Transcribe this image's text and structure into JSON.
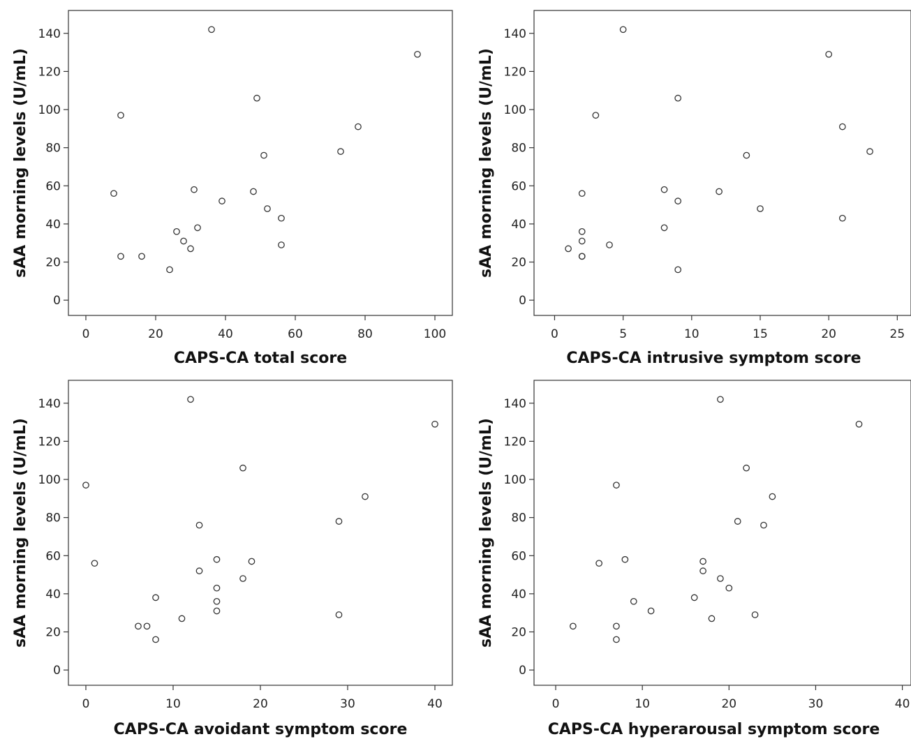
{
  "chart_data": [
    {
      "type": "scatter",
      "xlabel": "CAPS-CA total score",
      "ylabel": "sAA morning levels (U/mL)",
      "xlim": [
        -5,
        105
      ],
      "ylim": [
        -8,
        152
      ],
      "xticks": [
        0,
        20,
        40,
        60,
        80,
        100
      ],
      "yticks": [
        0,
        20,
        40,
        60,
        80,
        100,
        120,
        140
      ],
      "grid": false,
      "points": [
        {
          "x": 8,
          "y": 56
        },
        {
          "x": 10,
          "y": 97
        },
        {
          "x": 10,
          "y": 23
        },
        {
          "x": 16,
          "y": 23
        },
        {
          "x": 24,
          "y": 16
        },
        {
          "x": 26,
          "y": 36
        },
        {
          "x": 28,
          "y": 31
        },
        {
          "x": 30,
          "y": 27
        },
        {
          "x": 31,
          "y": 58
        },
        {
          "x": 32,
          "y": 38
        },
        {
          "x": 36,
          "y": 142
        },
        {
          "x": 39,
          "y": 52
        },
        {
          "x": 48,
          "y": 57
        },
        {
          "x": 49,
          "y": 106
        },
        {
          "x": 51,
          "y": 76
        },
        {
          "x": 52,
          "y": 48
        },
        {
          "x": 56,
          "y": 43
        },
        {
          "x": 56,
          "y": 29
        },
        {
          "x": 73,
          "y": 78
        },
        {
          "x": 78,
          "y": 91
        },
        {
          "x": 95,
          "y": 129
        }
      ]
    },
    {
      "type": "scatter",
      "xlabel": "CAPS-CA intrusive symptom score",
      "ylabel": "sAA morning levels (U/mL)",
      "xlim": [
        -1.5,
        26
      ],
      "ylim": [
        -8,
        152
      ],
      "xticks": [
        0,
        5,
        10,
        15,
        20,
        25
      ],
      "yticks": [
        0,
        20,
        40,
        60,
        80,
        100,
        120,
        140
      ],
      "grid": false,
      "points": [
        {
          "x": 1,
          "y": 27
        },
        {
          "x": 2,
          "y": 56
        },
        {
          "x": 2,
          "y": 36
        },
        {
          "x": 2,
          "y": 31
        },
        {
          "x": 2,
          "y": 23
        },
        {
          "x": 2,
          "y": 23
        },
        {
          "x": 3,
          "y": 97
        },
        {
          "x": 4,
          "y": 29
        },
        {
          "x": 5,
          "y": 142
        },
        {
          "x": 8,
          "y": 58
        },
        {
          "x": 8,
          "y": 38
        },
        {
          "x": 9,
          "y": 106
        },
        {
          "x": 9,
          "y": 52
        },
        {
          "x": 9,
          "y": 16
        },
        {
          "x": 12,
          "y": 57
        },
        {
          "x": 14,
          "y": 76
        },
        {
          "x": 15,
          "y": 48
        },
        {
          "x": 20,
          "y": 129
        },
        {
          "x": 21,
          "y": 91
        },
        {
          "x": 21,
          "y": 43
        },
        {
          "x": 23,
          "y": 78
        }
      ]
    },
    {
      "type": "scatter",
      "xlabel": "CAPS-CA avoidant symptom score",
      "ylabel": "sAA morning levels (U/mL)",
      "xlim": [
        -2,
        42
      ],
      "ylim": [
        -8,
        152
      ],
      "xticks": [
        0,
        10,
        20,
        30,
        40
      ],
      "yticks": [
        0,
        20,
        40,
        60,
        80,
        100,
        120,
        140
      ],
      "grid": false,
      "points": [
        {
          "x": 0,
          "y": 97
        },
        {
          "x": 1,
          "y": 56
        },
        {
          "x": 6,
          "y": 23
        },
        {
          "x": 7,
          "y": 23
        },
        {
          "x": 8,
          "y": 38
        },
        {
          "x": 8,
          "y": 16
        },
        {
          "x": 11,
          "y": 27
        },
        {
          "x": 12,
          "y": 142
        },
        {
          "x": 13,
          "y": 76
        },
        {
          "x": 13,
          "y": 52
        },
        {
          "x": 15,
          "y": 58
        },
        {
          "x": 15,
          "y": 43
        },
        {
          "x": 15,
          "y": 36
        },
        {
          "x": 15,
          "y": 31
        },
        {
          "x": 18,
          "y": 106
        },
        {
          "x": 18,
          "y": 48
        },
        {
          "x": 19,
          "y": 57
        },
        {
          "x": 29,
          "y": 78
        },
        {
          "x": 29,
          "y": 29
        },
        {
          "x": 32,
          "y": 91
        },
        {
          "x": 40,
          "y": 129
        }
      ]
    },
    {
      "type": "scatter",
      "xlabel": "CAPS-CA hyperarousal symptom score",
      "ylabel": "sAA morning levels (U/mL)",
      "xlim": [
        -2.5,
        41
      ],
      "ylim": [
        -8,
        152
      ],
      "xticks": [
        0,
        10,
        20,
        30,
        40
      ],
      "yticks": [
        0,
        20,
        40,
        60,
        80,
        100,
        120,
        140
      ],
      "grid": false,
      "points": [
        {
          "x": 2,
          "y": 23
        },
        {
          "x": 5,
          "y": 56
        },
        {
          "x": 7,
          "y": 97
        },
        {
          "x": 7,
          "y": 23
        },
        {
          "x": 7,
          "y": 16
        },
        {
          "x": 8,
          "y": 58
        },
        {
          "x": 9,
          "y": 36
        },
        {
          "x": 11,
          "y": 31
        },
        {
          "x": 16,
          "y": 38
        },
        {
          "x": 17,
          "y": 57
        },
        {
          "x": 17,
          "y": 52
        },
        {
          "x": 18,
          "y": 27
        },
        {
          "x": 19,
          "y": 142
        },
        {
          "x": 19,
          "y": 48
        },
        {
          "x": 20,
          "y": 43
        },
        {
          "x": 21,
          "y": 78
        },
        {
          "x": 22,
          "y": 106
        },
        {
          "x": 23,
          "y": 29
        },
        {
          "x": 24,
          "y": 76
        },
        {
          "x": 25,
          "y": 91
        },
        {
          "x": 35,
          "y": 129
        }
      ]
    }
  ]
}
